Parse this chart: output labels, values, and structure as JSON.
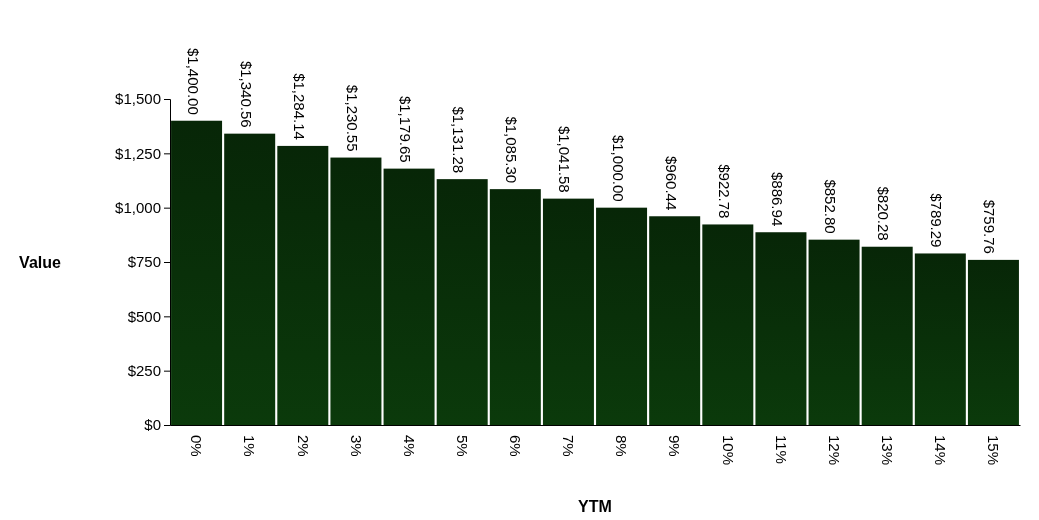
{
  "chart_data": {
    "type": "bar",
    "xlabel": "YTM",
    "ylabel": "Value",
    "categories": [
      "0%",
      "1%",
      "2%",
      "3%",
      "4%",
      "5%",
      "6%",
      "7%",
      "8%",
      "9%",
      "10%",
      "11%",
      "12%",
      "13%",
      "14%",
      "15%"
    ],
    "values": [
      1400,
      1340.56,
      1284.14,
      1230.55,
      1179.65,
      1131.28,
      1085.3,
      1041.58,
      1000,
      960.44,
      922.78,
      886.94,
      852.8,
      820.28,
      789.29,
      759.76
    ],
    "value_labels": [
      "$1,400.00",
      "$1,340.56",
      "$1,284.14",
      "$1,230.55",
      "$1,179.65",
      "$1,131.28",
      "$1,085.30",
      "$1,041.58",
      "$1,000.00",
      "$960.44",
      "$922.78",
      "$886.94",
      "$852.80",
      "$820.28",
      "$789.29",
      "$759.76"
    ],
    "color": "#0b3a0b",
    "ylim": [
      0,
      1500
    ],
    "yticks": [
      {
        "value": 0,
        "label": "$0"
      },
      {
        "value": 250,
        "label": "$250"
      },
      {
        "value": 500,
        "label": "$500"
      },
      {
        "value": 750,
        "label": "$750"
      },
      {
        "value": 1000,
        "label": "$1,000"
      },
      {
        "value": 1250,
        "label": "$1,250"
      },
      {
        "value": 1500,
        "label": "$1,500"
      }
    ]
  }
}
